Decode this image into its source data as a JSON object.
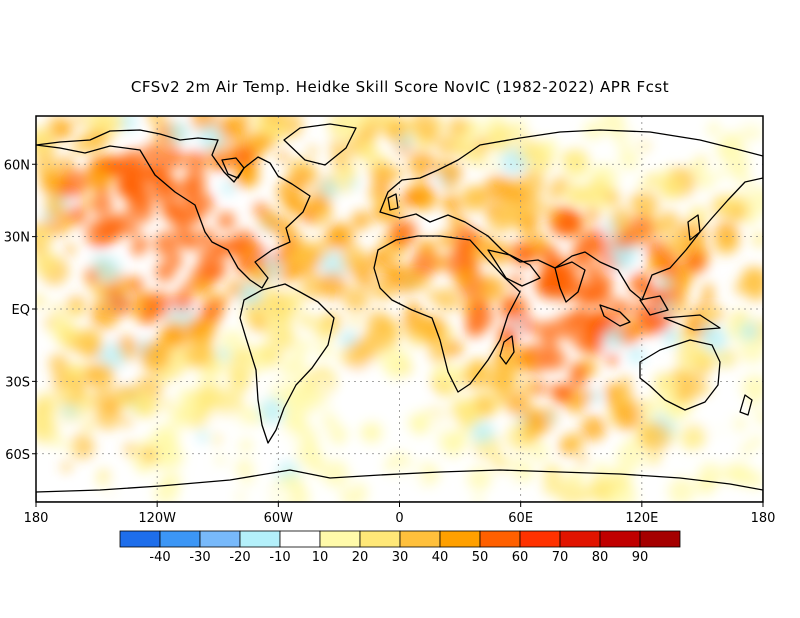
{
  "title": "CFSv2 2m Air Temp. Heidke Skill Score NovIC (1982-2022) APR Fcst",
  "map": {
    "projection": "equirectangular",
    "lon_range": [
      -180,
      180
    ],
    "lat_range": [
      -80,
      80
    ],
    "grid": true,
    "coastlines": true,
    "lon_ticks": [
      {
        "value": -180,
        "label": "180"
      },
      {
        "value": -120,
        "label": "120W"
      },
      {
        "value": -60,
        "label": "60W"
      },
      {
        "value": 0,
        "label": "0"
      },
      {
        "value": 60,
        "label": "60E"
      },
      {
        "value": 120,
        "label": "120E"
      },
      {
        "value": 180,
        "label": "180"
      }
    ],
    "lat_ticks": [
      {
        "value": 60,
        "label": "60N"
      },
      {
        "value": 30,
        "label": "30N"
      },
      {
        "value": 0,
        "label": "EQ"
      },
      {
        "value": -30,
        "label": "30S"
      },
      {
        "value": -60,
        "label": "60S"
      }
    ]
  },
  "colorbar": {
    "labels": [
      "-40",
      "-30",
      "-20",
      "-10",
      "10",
      "20",
      "30",
      "40",
      "50",
      "60",
      "70",
      "80",
      "90"
    ],
    "colors": [
      "#1e6eeb",
      "#3c96f5",
      "#78b9fa",
      "#b4f0fa",
      "#ffffff",
      "#fffaaa",
      "#ffe878",
      "#ffc03c",
      "#ffa000",
      "#ff6000",
      "#ff3200",
      "#e11400",
      "#c00000",
      "#a50000"
    ]
  }
}
